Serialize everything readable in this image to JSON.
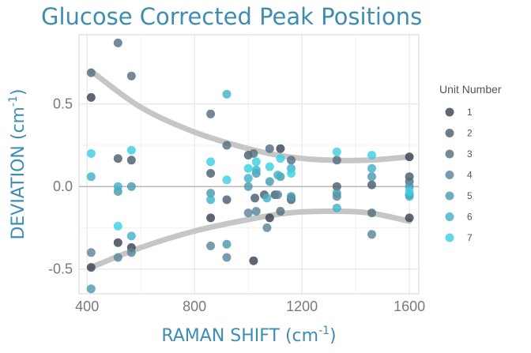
{
  "chart_data": {
    "type": "scatter",
    "title": "Glucose Corrected Peak Positions",
    "xlabel": {
      "text": "RAMAN SHIFT (cm",
      "sup": "-1",
      "close": ")"
    },
    "ylabel": {
      "text": "DEVIATION (cm",
      "sup": "-1",
      "close": ")"
    },
    "xlim": [
      370,
      1635
    ],
    "ylim": [
      -0.65,
      0.92
    ],
    "x_ticks": [
      {
        "value": 400,
        "label": "400"
      },
      {
        "value": 800,
        "label": "800"
      },
      {
        "value": 1200,
        "label": "1200"
      },
      {
        "value": 1600,
        "label": "1600"
      }
    ],
    "y_ticks": [
      {
        "value": 0.5,
        "label": "0.5"
      },
      {
        "value": 0.0,
        "label": "0.0"
      },
      {
        "value": -0.5,
        "label": "-0.5"
      }
    ],
    "grid": true,
    "legend": {
      "title": "Unit Number",
      "position": "right"
    },
    "series": [
      {
        "name": "1",
        "color": "#3b4652",
        "points": [
          [
            415,
            -0.49
          ],
          [
            415,
            0.54
          ],
          [
            515,
            -0.34
          ],
          [
            565,
            -0.37
          ],
          [
            860,
            -0.19
          ],
          [
            1020,
            -0.45
          ],
          [
            1080,
            -0.19
          ],
          [
            1120,
            0.23
          ],
          [
            1600,
            0.18
          ],
          [
            1600,
            -0.19
          ]
        ]
      },
      {
        "name": "2",
        "color": "#4b5e6e",
        "points": [
          [
            515,
            0.17
          ],
          [
            565,
            0.16
          ],
          [
            860,
            0.08
          ],
          [
            920,
            -0.08
          ],
          [
            1000,
            0.19
          ],
          [
            1025,
            -0.07
          ],
          [
            1060,
            -0.05
          ],
          [
            1100,
            -0.05
          ],
          [
            1160,
            -0.08
          ],
          [
            1330,
            0.0
          ],
          [
            1460,
            0.01
          ],
          [
            1600,
            0.06
          ]
        ]
      },
      {
        "name": "3",
        "color": "#536f80",
        "points": [
          [
            415,
            0.69
          ],
          [
            515,
            0.87
          ],
          [
            565,
            0.67
          ],
          [
            860,
            0.44
          ],
          [
            920,
            0.25
          ],
          [
            1020,
            0.2
          ],
          [
            1080,
            0.23
          ],
          [
            1120,
            -0.15
          ],
          [
            1160,
            0.16
          ],
          [
            1330,
            0.16
          ],
          [
            1460,
            -0.16
          ],
          [
            1600,
            0.03
          ]
        ]
      },
      {
        "name": "4",
        "color": "#5a8698",
        "points": [
          [
            415,
            -0.4
          ],
          [
            515,
            -0.43
          ],
          [
            565,
            -0.4
          ],
          [
            860,
            -0.36
          ],
          [
            920,
            -0.43
          ],
          [
            1000,
            -0.16
          ],
          [
            1030,
            -0.15
          ],
          [
            1070,
            -0.25
          ],
          [
            1110,
            -0.05
          ],
          [
            1160,
            -0.07
          ],
          [
            1330,
            -0.06
          ],
          [
            1460,
            -0.29
          ],
          [
            1600,
            -0.05
          ]
        ]
      },
      {
        "name": "5",
        "color": "#4b9aaf",
        "points": [
          [
            415,
            -0.62
          ],
          [
            515,
            -0.03
          ],
          [
            565,
            0.0
          ],
          [
            860,
            -0.04
          ],
          [
            920,
            -0.35
          ],
          [
            1000,
            0.0
          ],
          [
            1030,
            0.08
          ],
          [
            1080,
            0.03
          ],
          [
            1120,
            0.06
          ],
          [
            1160,
            -0.06
          ],
          [
            1330,
            -0.04
          ],
          [
            1460,
            0.06
          ],
          [
            1600,
            0.0
          ]
        ]
      },
      {
        "name": "6",
        "color": "#42b2c8",
        "points": [
          [
            415,
            0.06
          ],
          [
            515,
            0.0
          ],
          [
            565,
            -0.3
          ],
          [
            860,
            -0.08
          ],
          [
            920,
            0.56
          ],
          [
            1000,
            0.05
          ],
          [
            1030,
            0.1
          ],
          [
            1070,
            -0.07
          ],
          [
            1110,
            0.07
          ],
          [
            1160,
            0.11
          ],
          [
            1330,
            -0.13
          ],
          [
            1460,
            0.11
          ],
          [
            1600,
            -0.06
          ]
        ]
      },
      {
        "name": "7",
        "color": "#3ed0e2",
        "points": [
          [
            415,
            0.2
          ],
          [
            515,
            -0.24
          ],
          [
            565,
            0.22
          ],
          [
            860,
            0.15
          ],
          [
            920,
            0.04
          ],
          [
            1000,
            0.11
          ],
          [
            1030,
            0.15
          ],
          [
            1080,
            0.12
          ],
          [
            1120,
            0.17
          ],
          [
            1160,
            0.08
          ],
          [
            1330,
            0.21
          ],
          [
            1460,
            0.19
          ],
          [
            1600,
            -0.03
          ]
        ]
      }
    ],
    "bands": {
      "color": "#c6c6c6",
      "upper": [
        [
          415,
          0.7
        ],
        [
          600,
          0.48
        ],
        [
          800,
          0.33
        ],
        [
          1000,
          0.23
        ],
        [
          1150,
          0.18
        ],
        [
          1300,
          0.16
        ],
        [
          1450,
          0.16
        ],
        [
          1600,
          0.18
        ]
      ],
      "lower": [
        [
          415,
          -0.49
        ],
        [
          600,
          -0.37
        ],
        [
          800,
          -0.27
        ],
        [
          1000,
          -0.2
        ],
        [
          1150,
          -0.16
        ],
        [
          1300,
          -0.15
        ],
        [
          1450,
          -0.16
        ],
        [
          1600,
          -0.21
        ]
      ]
    }
  }
}
